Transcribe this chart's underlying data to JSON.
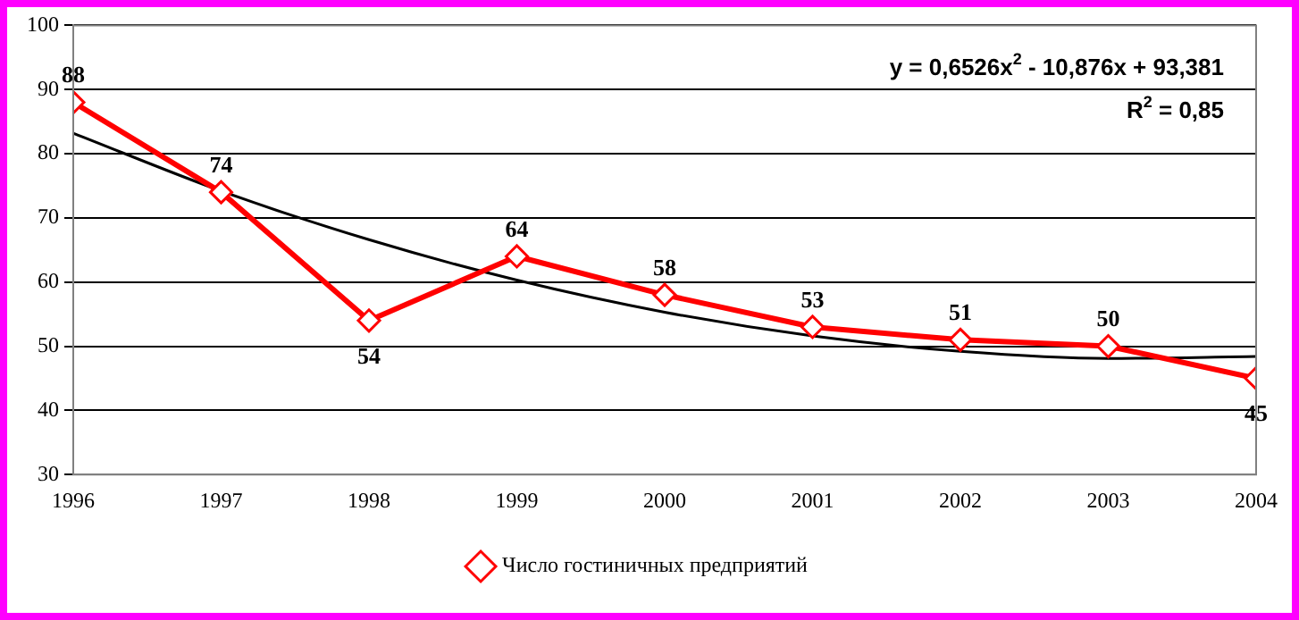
{
  "chart_data": {
    "type": "line",
    "x": [
      1996,
      1997,
      1998,
      1999,
      2000,
      2001,
      2002,
      2003,
      2004
    ],
    "series": [
      {
        "name": "Число гостиничных предприятий",
        "color": "#ff0000",
        "values": [
          88,
          74,
          54,
          64,
          58,
          53,
          51,
          50,
          45
        ],
        "value_labels": [
          "88",
          "74",
          "54",
          "64",
          "58",
          "53",
          "51",
          "50",
          "45"
        ],
        "marker": "diamond"
      },
      {
        "type": "line",
        "color": "#000000",
        "x": [
          1996,
          1997,
          1998,
          1999,
          2000,
          2001,
          2002,
          2003,
          2004
        ],
        "values": [
          83.2,
          74.2,
          66.6,
          60.3,
          55.3,
          51.6,
          49.2,
          48.1,
          48.4
        ],
        "marker": "none"
      }
    ],
    "xlim": [
      1996,
      2004
    ],
    "xticks": [
      1996,
      1997,
      1998,
      1999,
      2000,
      2001,
      2002,
      2003,
      2004
    ],
    "ylim": [
      30,
      100
    ],
    "yticks": [
      30,
      40,
      50,
      60,
      70,
      80,
      90,
      100
    ],
    "grid": "y",
    "legend": "bottom",
    "annotations": [
      "y = 0,6526x$^{2}$ - 10,876x + 93,381",
      "R$^{2}$ = 0,85"
    ]
  }
}
